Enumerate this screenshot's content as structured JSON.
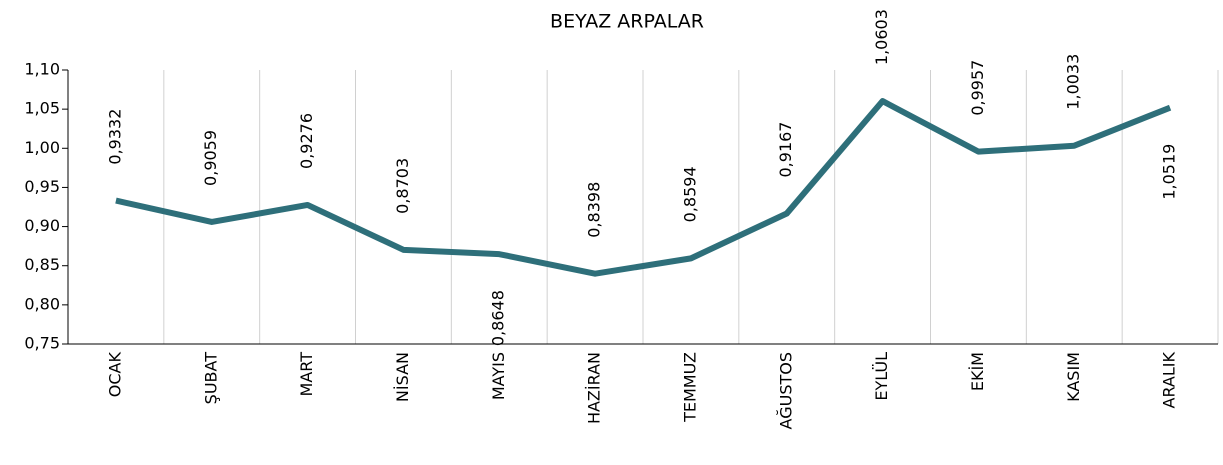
{
  "chart_data": {
    "type": "line",
    "title": "BEYAZ ARPALAR",
    "categories": [
      "OCAK",
      "ŞUBAT",
      "MART",
      "NİSAN",
      "MAYIS",
      "HAZİRAN",
      "TEMMUZ",
      "AĞUSTOS",
      "EYLÜL",
      "EKİM",
      "KASIM",
      "ARALIK"
    ],
    "series": [
      {
        "name": "BEYAZ ARPALAR",
        "color": "#2e6f7a",
        "values": [
          0.9332,
          0.9059,
          0.9276,
          0.8703,
          0.8648,
          0.8398,
          0.8594,
          0.9167,
          1.0603,
          0.9957,
          1.0033,
          1.0519
        ],
        "value_labels": [
          "0,9332",
          "0,9059",
          "0,9276",
          "0,8703",
          "0,8648",
          "0,8398",
          "0,8594",
          "0,9167",
          "1,0603",
          "0,9957",
          "1,0033",
          "1,0519"
        ]
      }
    ],
    "ylim": [
      0.75,
      1.1
    ],
    "yticks": [
      {
        "value": 0.75,
        "label": "0,75"
      },
      {
        "value": 0.8,
        "label": "0,80"
      },
      {
        "value": 0.85,
        "label": "0,85"
      },
      {
        "value": 0.9,
        "label": "0,90"
      },
      {
        "value": 0.95,
        "label": "0,95"
      },
      {
        "value": 1.0,
        "label": "1,00"
      },
      {
        "value": 1.05,
        "label": "1,05"
      },
      {
        "value": 1.1,
        "label": "1,10"
      }
    ],
    "grid": "x"
  }
}
